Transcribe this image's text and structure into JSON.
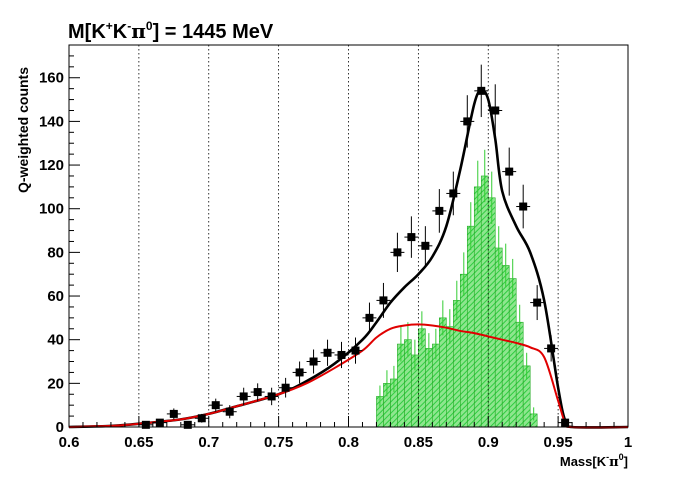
{
  "chart_data": {
    "type": "scatter",
    "title": {
      "prefix": "M[K",
      "sup1": "+",
      "mid": "K",
      "sup2": "-",
      "pi": "π",
      "sup3": "0",
      "suffix": "] = 1445 MeV"
    },
    "ylabel": "Q-weighted counts",
    "xlabel": {
      "base": "Mass[K",
      "sup1": "-",
      "pi": "π",
      "sup2": "0",
      "end": "]"
    },
    "xlim": [
      0.6,
      1.0
    ],
    "ylim": [
      0,
      175
    ],
    "x_ticks": [
      "0.6",
      "0.65",
      "0.7",
      "0.75",
      "0.8",
      "0.85",
      "0.9",
      "0.95",
      "1"
    ],
    "y_ticks": [
      "0",
      "20",
      "40",
      "60",
      "80",
      "100",
      "120",
      "140",
      "160"
    ],
    "grid_x_dotted": [
      0.65,
      0.7,
      0.75,
      0.8,
      0.85,
      0.9,
      0.95
    ],
    "colors": {
      "data": "#000000",
      "total_fit": "#000000",
      "background_fit": "#e00000",
      "histogram": "#2ecc40"
    },
    "series": [
      {
        "kind": "points",
        "color": "#000000",
        "x": [
          0.655,
          0.665,
          0.675,
          0.685,
          0.695,
          0.705,
          0.715,
          0.725,
          0.735,
          0.745,
          0.755,
          0.765,
          0.775,
          0.785,
          0.795,
          0.805,
          0.815,
          0.825,
          0.835,
          0.845,
          0.855,
          0.865,
          0.875,
          0.885,
          0.895,
          0.905,
          0.915,
          0.925,
          0.935,
          0.945,
          0.955
        ],
        "y": [
          1,
          2,
          6,
          1,
          4,
          10,
          7,
          14,
          16,
          14,
          18,
          25,
          30,
          34,
          33,
          35,
          50,
          58,
          80,
          87,
          83,
          99,
          107,
          140,
          154,
          145,
          117,
          101,
          57,
          36,
          2
        ],
        "yerr": [
          1,
          1.5,
          2.5,
          1,
          2,
          3,
          3,
          4,
          4,
          4,
          4.5,
          5,
          5.5,
          6,
          6,
          6,
          7,
          8,
          9,
          9.5,
          9,
          10,
          10,
          12,
          12,
          12,
          11,
          10,
          8,
          6,
          1.5
        ],
        "xerr": 0.005
      },
      {
        "kind": "histogram",
        "color": "#2ecc40",
        "bin_edges_start": 0.82,
        "bin_width": 0.005,
        "values": [
          14,
          20,
          22,
          38,
          40,
          33,
          45,
          36,
          38,
          50,
          46,
          58,
          70,
          92,
          110,
          115,
          105,
          82,
          74,
          68,
          48,
          28,
          6,
          0
        ],
        "errors": [
          5,
          6,
          6,
          8,
          8,
          7,
          8,
          7,
          7,
          8,
          8,
          9,
          10,
          11,
          12,
          12,
          12,
          10,
          10,
          9,
          8,
          6,
          3,
          0
        ]
      },
      {
        "kind": "curve",
        "color": "#000000",
        "x": [
          0.6,
          0.63,
          0.65,
          0.68,
          0.7,
          0.72,
          0.75,
          0.77,
          0.79,
          0.81,
          0.82,
          0.83,
          0.84,
          0.85,
          0.86,
          0.87,
          0.88,
          0.89,
          0.895,
          0.9,
          0.905,
          0.91,
          0.92,
          0.93,
          0.94,
          0.95,
          0.955,
          0.96,
          1.0
        ],
        "y": [
          0,
          0.5,
          1.5,
          3.5,
          6,
          9.5,
          15,
          21,
          29,
          40,
          48,
          57,
          64,
          70,
          78,
          92,
          118,
          148,
          154,
          150,
          132,
          108,
          92,
          80,
          58,
          18,
          3,
          0,
          0
        ]
      },
      {
        "kind": "curve",
        "color": "#e00000",
        "x": [
          0.6,
          0.63,
          0.65,
          0.68,
          0.7,
          0.72,
          0.75,
          0.77,
          0.79,
          0.81,
          0.82,
          0.83,
          0.84,
          0.85,
          0.86,
          0.87,
          0.88,
          0.89,
          0.9,
          0.91,
          0.92,
          0.93,
          0.94,
          0.95,
          0.955,
          0.96,
          1.0
        ],
        "y": [
          0,
          0.5,
          1.5,
          3.5,
          6,
          9.5,
          15,
          20,
          27,
          35,
          41,
          45,
          46.5,
          47,
          46.5,
          45.5,
          44,
          43,
          41.5,
          40,
          38.5,
          36.5,
          32,
          12,
          2,
          0,
          0
        ]
      }
    ]
  }
}
